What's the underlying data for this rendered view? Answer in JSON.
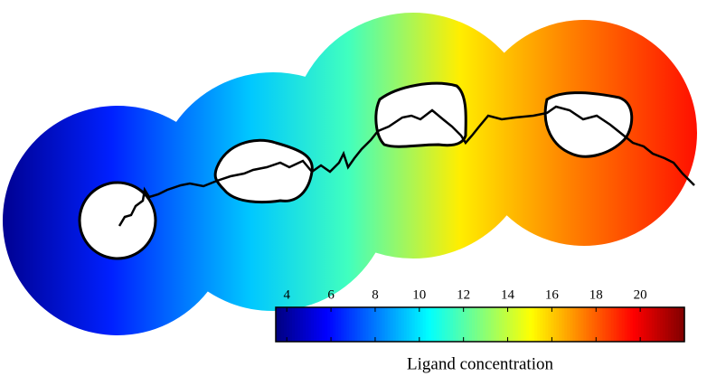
{
  "chart_data": {
    "type": "colorbar",
    "colormap": "jet",
    "label": "Ligand concentration",
    "clim": [
      3.5,
      22
    ],
    "ticks": [
      4,
      6,
      8,
      10,
      12,
      14,
      16,
      18,
      20
    ]
  }
}
